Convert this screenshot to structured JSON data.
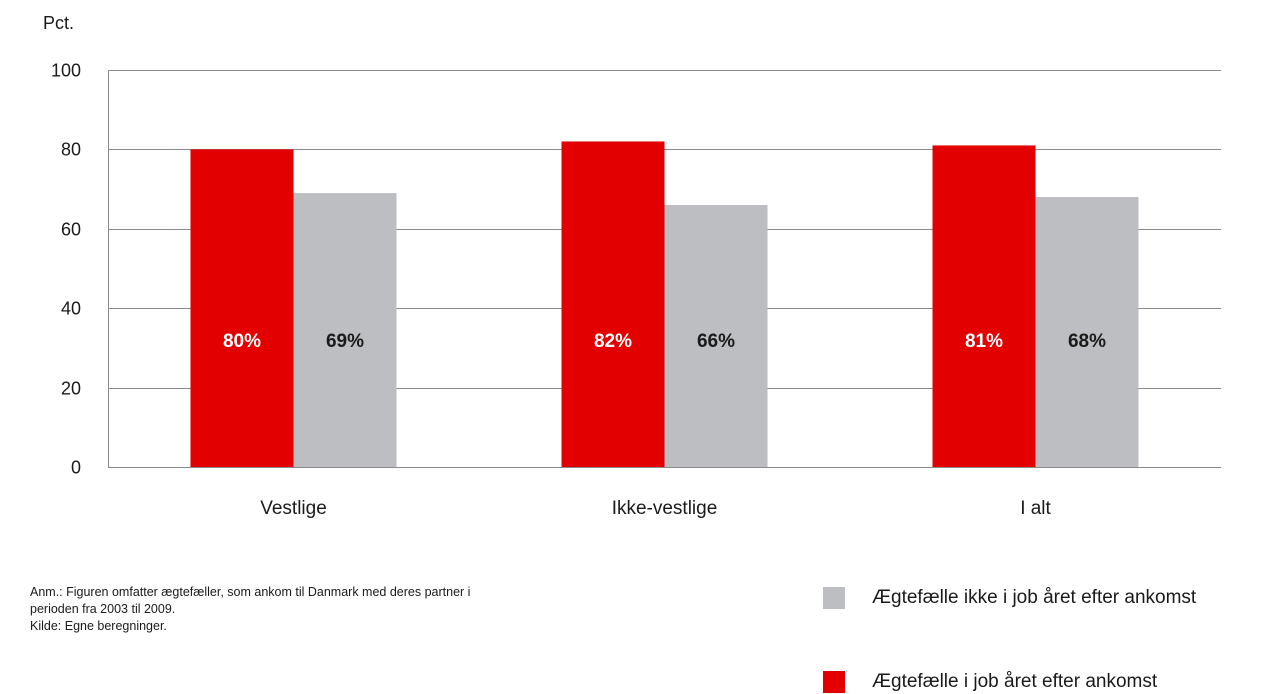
{
  "chart_data": {
    "type": "bar",
    "unit_label": "Pct.",
    "categories": [
      "Vestlige",
      "Ikke-vestlige",
      "I alt"
    ],
    "series": [
      {
        "name": "Ægtefælle i job året efter ankomst",
        "color": "#e30000",
        "label_color": "#ffffff",
        "values": [
          80,
          82,
          81
        ],
        "labels": [
          "80%",
          "82%",
          "81%"
        ]
      },
      {
        "name": "Ægtefælle ikke i job året efter ankomst",
        "color": "#bdbec2",
        "label_color": "#1a1a1a",
        "values": [
          69,
          66,
          68
        ],
        "labels": [
          "69%",
          "66%",
          "68%"
        ]
      }
    ],
    "ylim": [
      0,
      100
    ],
    "yticks": [
      0,
      20,
      40,
      60,
      80,
      100
    ],
    "grid": true,
    "gridline_color": "#8a8a8a",
    "legend_position": "bottom-right"
  },
  "notes": [
    "Anm.: Figuren omfatter ægtefæller, som ankom til Danmark med deres partner i",
    "perioden fra 2003 til 2009.",
    "Kilde: Egne beregninger."
  ],
  "legend": [
    {
      "label": "Ægtefælle ikke i job året efter ankomst",
      "color": "#bdbec2"
    },
    {
      "label": "Ægtefælle i job året efter ankomst",
      "color": "#e30000"
    }
  ]
}
